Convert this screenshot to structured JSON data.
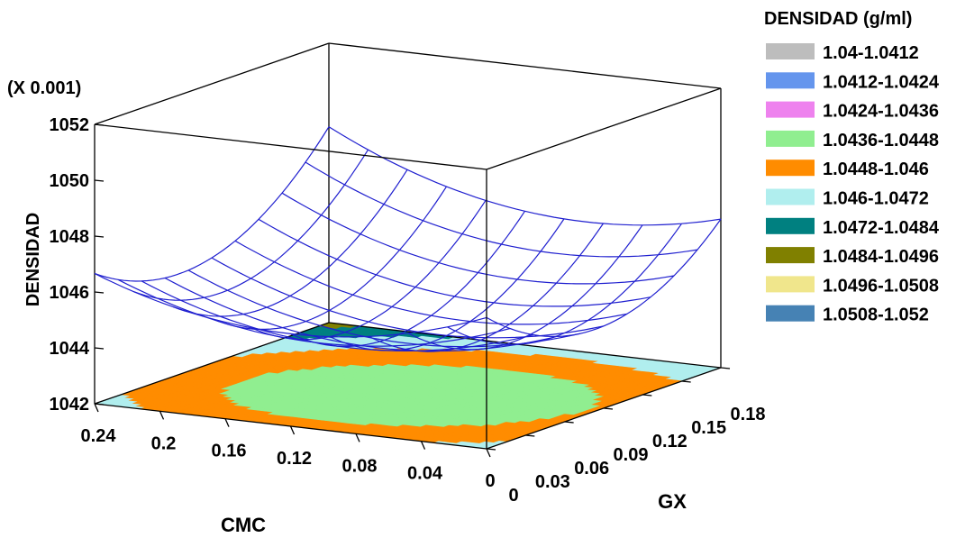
{
  "chart_data": {
    "type": "surface",
    "title": "",
    "multiplier_label": "(X 0.001)",
    "x_axis": {
      "label": "CMC",
      "ticks": [
        "0",
        "0.04",
        "0.08",
        "0.12",
        "0.16",
        "0.2",
        "0.24"
      ],
      "range": [
        0,
        0.24
      ]
    },
    "y_axis": {
      "label": "GX",
      "ticks": [
        "0",
        "0.03",
        "0.06",
        "0.09",
        "0.12",
        "0.15",
        "0.18"
      ],
      "range": [
        0,
        0.18
      ]
    },
    "z_axis": {
      "label": "DENSIDAD",
      "ticks": [
        "1042",
        "1044",
        "1046",
        "1048",
        "1050",
        "1052"
      ],
      "range": [
        1042,
        1052
      ]
    },
    "legend": {
      "title": "DENSIDAD (g/ml)",
      "position": "right",
      "items": [
        {
          "label": "1.04-1.0412",
          "color": "#bdbdbd"
        },
        {
          "label": "1.0412-1.0424",
          "color": "#6495ed"
        },
        {
          "label": "1.0424-1.0436",
          "color": "#ee82ee"
        },
        {
          "label": "1.0436-1.0448",
          "color": "#90ee90"
        },
        {
          "label": "1.0448-1.046",
          "color": "#ff8c00"
        },
        {
          "label": "1.046-1.0472",
          "color": "#b0eeee"
        },
        {
          "label": "1.0472-1.0484",
          "color": "#008080"
        },
        {
          "label": "1.0484-1.0496",
          "color": "#808000"
        },
        {
          "label": "1.0496-1.0508",
          "color": "#f0e68c"
        },
        {
          "label": "1.0508-1.052",
          "color": "#4682b4"
        }
      ]
    },
    "surface_color": "#1f1fcf",
    "box_color": "#000000"
  }
}
